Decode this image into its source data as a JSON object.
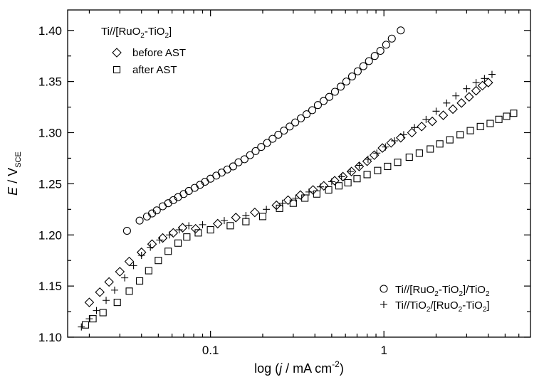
{
  "chart_data": {
    "type": "scatter",
    "x_scale": "log",
    "xlim": [
      0.015,
      7.0
    ],
    "ylim": [
      1.1,
      1.42
    ],
    "xticks": [
      {
        "value": 0.1,
        "label": "0.1"
      },
      {
        "value": 1,
        "label": "1"
      }
    ],
    "yticks": [
      {
        "value": 1.1,
        "label": "1.10"
      },
      {
        "value": 1.15,
        "label": "1.15"
      },
      {
        "value": 1.2,
        "label": "1.20"
      },
      {
        "value": 1.25,
        "label": "1.25"
      },
      {
        "value": 1.3,
        "label": "1.30"
      },
      {
        "value": 1.35,
        "label": "1.35"
      },
      {
        "value": 1.4,
        "label": "1.40"
      }
    ],
    "xlabel": {
      "pre": "log (",
      "italic": "j",
      "mid": " / mA cm",
      "sup": "-2",
      "post": ")"
    },
    "ylabel": {
      "italic": "E",
      "mid": " / V",
      "sub": "SCE"
    },
    "legend_top": {
      "title": {
        "a": "Ti//[RuO",
        "b": "2",
        "c": "-TiO",
        "d": "2",
        "e": "]"
      },
      "entries": [
        {
          "marker": "diamond",
          "label": "before AST"
        },
        {
          "marker": "square",
          "label": "after AST"
        }
      ]
    },
    "legend_bottom": {
      "entries": [
        {
          "marker": "circle",
          "parts": [
            "Ti//[RuO",
            "2",
            "-TiO",
            "2",
            "]/TiO",
            "2"
          ]
        },
        {
          "marker": "plus",
          "parts": [
            "Ti//TiO",
            "2",
            "/[RuO",
            "2",
            "-TiO",
            "2",
            "]"
          ]
        }
      ]
    },
    "series": [
      {
        "marker": "circle",
        "points": [
          [
            0.033,
            1.204
          ],
          [
            0.039,
            1.214
          ],
          [
            0.043,
            1.218
          ],
          [
            0.046,
            1.221
          ],
          [
            0.049,
            1.224
          ],
          [
            0.053,
            1.228
          ],
          [
            0.057,
            1.231
          ],
          [
            0.061,
            1.234
          ],
          [
            0.065,
            1.237
          ],
          [
            0.07,
            1.24
          ],
          [
            0.075,
            1.243
          ],
          [
            0.081,
            1.246
          ],
          [
            0.087,
            1.249
          ],
          [
            0.093,
            1.252
          ],
          [
            0.1,
            1.255
          ],
          [
            0.108,
            1.258
          ],
          [
            0.116,
            1.261
          ],
          [
            0.125,
            1.264
          ],
          [
            0.135,
            1.267
          ],
          [
            0.145,
            1.271
          ],
          [
            0.157,
            1.274
          ],
          [
            0.169,
            1.278
          ],
          [
            0.182,
            1.282
          ],
          [
            0.196,
            1.286
          ],
          [
            0.212,
            1.29
          ],
          [
            0.228,
            1.294
          ],
          [
            0.246,
            1.298
          ],
          [
            0.265,
            1.302
          ],
          [
            0.286,
            1.306
          ],
          [
            0.308,
            1.31
          ],
          [
            0.332,
            1.314
          ],
          [
            0.358,
            1.318
          ],
          [
            0.386,
            1.322
          ],
          [
            0.416,
            1.327
          ],
          [
            0.449,
            1.331
          ],
          [
            0.484,
            1.335
          ],
          [
            0.522,
            1.34
          ],
          [
            0.563,
            1.345
          ],
          [
            0.607,
            1.35
          ],
          [
            0.655,
            1.355
          ],
          [
            0.706,
            1.36
          ],
          [
            0.761,
            1.365
          ],
          [
            0.82,
            1.37
          ],
          [
            0.885,
            1.375
          ],
          [
            0.954,
            1.38
          ],
          [
            1.03,
            1.386
          ],
          [
            1.11,
            1.392
          ],
          [
            1.25,
            1.4
          ]
        ]
      },
      {
        "marker": "diamond",
        "points": [
          [
            0.02,
            1.134
          ],
          [
            0.023,
            1.144
          ],
          [
            0.026,
            1.154
          ],
          [
            0.03,
            1.164
          ],
          [
            0.034,
            1.174
          ],
          [
            0.04,
            1.183
          ],
          [
            0.046,
            1.191
          ],
          [
            0.053,
            1.197
          ],
          [
            0.061,
            1.202
          ],
          [
            0.069,
            1.207
          ],
          [
            0.082,
            1.206
          ],
          [
            0.11,
            1.211
          ],
          [
            0.14,
            1.217
          ],
          [
            0.18,
            1.222
          ],
          [
            0.24,
            1.229
          ],
          [
            0.28,
            1.234
          ],
          [
            0.33,
            1.239
          ],
          [
            0.39,
            1.244
          ],
          [
            0.45,
            1.248
          ],
          [
            0.52,
            1.253
          ],
          [
            0.58,
            1.257
          ],
          [
            0.65,
            1.262
          ],
          [
            0.72,
            1.267
          ],
          [
            0.8,
            1.272
          ],
          [
            0.88,
            1.278
          ],
          [
            0.98,
            1.285
          ],
          [
            1.1,
            1.29
          ],
          [
            1.25,
            1.295
          ],
          [
            1.45,
            1.3
          ],
          [
            1.65,
            1.306
          ],
          [
            1.9,
            1.311
          ],
          [
            2.2,
            1.317
          ],
          [
            2.5,
            1.323
          ],
          [
            2.8,
            1.329
          ],
          [
            3.1,
            1.335
          ],
          [
            3.4,
            1.341
          ],
          [
            3.7,
            1.346
          ],
          [
            4.0,
            1.349
          ]
        ]
      },
      {
        "marker": "square",
        "points": [
          [
            0.019,
            1.112
          ],
          [
            0.021,
            1.118
          ],
          [
            0.024,
            1.124
          ],
          [
            0.029,
            1.134
          ],
          [
            0.034,
            1.145
          ],
          [
            0.039,
            1.155
          ],
          [
            0.044,
            1.165
          ],
          [
            0.05,
            1.175
          ],
          [
            0.057,
            1.184
          ],
          [
            0.065,
            1.192
          ],
          [
            0.073,
            1.198
          ],
          [
            0.085,
            1.202
          ],
          [
            0.1,
            1.205
          ],
          [
            0.13,
            1.209
          ],
          [
            0.16,
            1.213
          ],
          [
            0.2,
            1.218
          ],
          [
            0.25,
            1.226
          ],
          [
            0.3,
            1.231
          ],
          [
            0.35,
            1.236
          ],
          [
            0.41,
            1.24
          ],
          [
            0.48,
            1.244
          ],
          [
            0.55,
            1.248
          ],
          [
            0.62,
            1.251
          ],
          [
            0.7,
            1.255
          ],
          [
            0.8,
            1.259
          ],
          [
            0.92,
            1.263
          ],
          [
            1.05,
            1.267
          ],
          [
            1.2,
            1.271
          ],
          [
            1.4,
            1.276
          ],
          [
            1.6,
            1.28
          ],
          [
            1.85,
            1.284
          ],
          [
            2.1,
            1.289
          ],
          [
            2.4,
            1.293
          ],
          [
            2.75,
            1.298
          ],
          [
            3.15,
            1.302
          ],
          [
            3.6,
            1.306
          ],
          [
            4.1,
            1.309
          ],
          [
            4.6,
            1.313
          ],
          [
            5.1,
            1.316
          ],
          [
            5.6,
            1.319
          ]
        ]
      },
      {
        "marker": "plus",
        "points": [
          [
            0.018,
            1.11
          ],
          [
            0.02,
            1.118
          ],
          [
            0.022,
            1.126
          ],
          [
            0.025,
            1.136
          ],
          [
            0.028,
            1.146
          ],
          [
            0.032,
            1.158
          ],
          [
            0.036,
            1.17
          ],
          [
            0.04,
            1.18
          ],
          [
            0.045,
            1.188
          ],
          [
            0.051,
            1.195
          ],
          [
            0.058,
            1.2
          ],
          [
            0.066,
            1.205
          ],
          [
            0.075,
            1.209
          ],
          [
            0.09,
            1.21
          ],
          [
            0.12,
            1.214
          ],
          [
            0.16,
            1.219
          ],
          [
            0.21,
            1.225
          ],
          [
            0.26,
            1.231
          ],
          [
            0.31,
            1.236
          ],
          [
            0.37,
            1.242
          ],
          [
            0.43,
            1.247
          ],
          [
            0.5,
            1.252
          ],
          [
            0.57,
            1.257
          ],
          [
            0.64,
            1.262
          ],
          [
            0.72,
            1.268
          ],
          [
            0.81,
            1.274
          ],
          [
            0.91,
            1.28
          ],
          [
            1.02,
            1.286
          ],
          [
            1.15,
            1.292
          ],
          [
            1.3,
            1.298
          ],
          [
            1.5,
            1.305
          ],
          [
            1.75,
            1.313
          ],
          [
            2.0,
            1.321
          ],
          [
            2.3,
            1.329
          ],
          [
            2.6,
            1.336
          ],
          [
            3.0,
            1.343
          ],
          [
            3.4,
            1.349
          ],
          [
            3.8,
            1.353
          ],
          [
            4.2,
            1.357
          ]
        ]
      }
    ]
  }
}
